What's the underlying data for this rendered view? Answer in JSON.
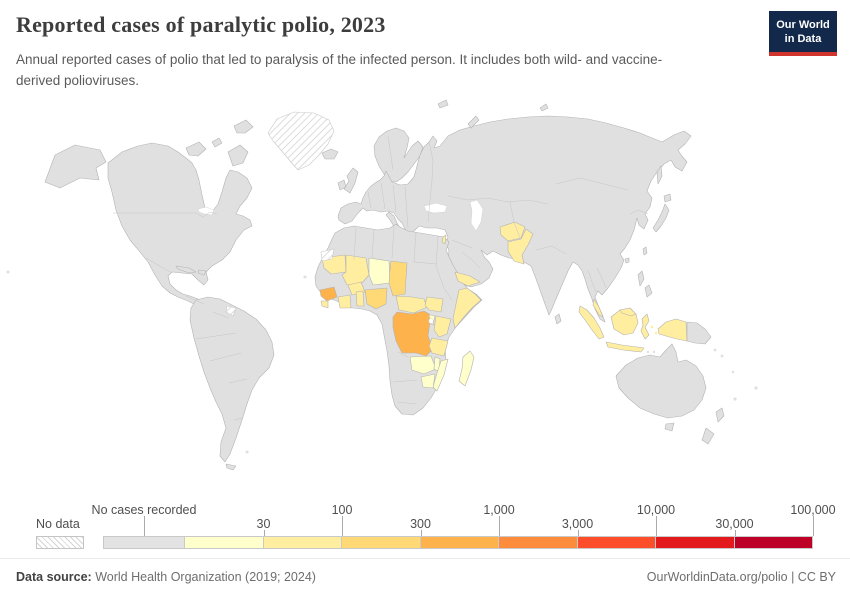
{
  "header": {
    "title": "Reported cases of paralytic polio, 2023",
    "subtitle": "Annual reported cases of polio that led to paralysis of the infected person. It includes both wild- and vaccine-derived polioviruses.",
    "logo_line1": "Our World",
    "logo_line2": "in Data",
    "logo_bg": "#12294b",
    "logo_accent": "#d0342c"
  },
  "legend": {
    "no_data_label": "No data",
    "no_cases_label": "No cases recorded",
    "tick_labels": [
      "30",
      "100",
      "300",
      "1,000",
      "3,000",
      "10,000",
      "30,000",
      "100,000"
    ],
    "bin_colors": [
      "#e3e3e3",
      "#ffffcc",
      "#ffeda0",
      "#fed976",
      "#feb24c",
      "#fd8d3c",
      "#fc4e2a",
      "#e31a1c",
      "#bd0026"
    ]
  },
  "map": {
    "land_color": "#e0e0e0",
    "border_color": "#b3b3b3",
    "ocean_color": "#ffffff",
    "country_bins": {
      "Democratic Republic of Congo": 4,
      "Guinea": 4,
      "Nigeria": 3,
      "Chad": 3,
      "Mauritania": 2,
      "Mali": 2,
      "Burkina Faso": 2,
      "Cote d'Ivoire": 2,
      "Sierra Leone": 2,
      "Benin": 2,
      "Central African Republic": 2,
      "South Sudan": 2,
      "Somalia": 2,
      "Kenya": 2,
      "Tanzania": 2,
      "Yemen": 2,
      "Israel": 2,
      "Afghanistan": 2,
      "Pakistan": 2,
      "Indonesia": 2,
      "Malaysia": 2,
      "Niger": 1,
      "Uganda": 1,
      "Zambia": 1,
      "Malawi": 1,
      "Zimbabwe": 1,
      "Mozambique": 1,
      "Madagascar": 1,
      "Greenland": "no_data",
      "French Guiana": "no_data",
      "Western Sahara": "no_data"
    }
  },
  "footer": {
    "source_label": "Data source:",
    "source_value": " World Health Organization (2019; 2024)",
    "credit": "OurWorldinData.org/polio | CC BY"
  },
  "chart_data": {
    "type": "choropleth",
    "title": "Reported cases of paralytic polio, 2023",
    "unit": "reported cases of paralytic polio",
    "scale_type": "logarithmic bins",
    "bins": [
      {
        "label": "No cases recorded",
        "color": "#e3e3e3"
      },
      {
        "range": "1–30",
        "color": "#ffffcc"
      },
      {
        "range": "30–100",
        "color": "#ffeda0"
      },
      {
        "range": "100–300",
        "color": "#fed976"
      },
      {
        "range": "300–1,000",
        "color": "#feb24c"
      },
      {
        "range": "1,000–3,000",
        "color": "#fd8d3c"
      },
      {
        "range": "3,000–10,000",
        "color": "#fc4e2a"
      },
      {
        "range": "10,000–30,000",
        "color": "#e31a1c"
      },
      {
        "range": "30,000–100,000",
        "color": "#bd0026"
      }
    ],
    "countries": {
      "Democratic Republic of Congo": "300–1,000",
      "Guinea": "300–1,000",
      "Nigeria": "100–300",
      "Chad": "100–300",
      "Mauritania": "30–100",
      "Mali": "30–100",
      "Burkina Faso": "30–100",
      "Cote d'Ivoire": "30–100",
      "Sierra Leone": "30–100",
      "Benin": "30–100",
      "Central African Republic": "30–100",
      "South Sudan": "30–100",
      "Somalia": "30–100",
      "Kenya": "30–100",
      "Tanzania": "30–100",
      "Yemen": "30–100",
      "Israel": "30–100",
      "Afghanistan": "30–100",
      "Pakistan": "30–100",
      "Indonesia": "30–100",
      "Malaysia": "30–100",
      "Niger": "1–30",
      "Uganda": "1–30",
      "Zambia": "1–30",
      "Malawi": "1–30",
      "Zimbabwe": "1–30",
      "Mozambique": "1–30",
      "Madagascar": "1–30",
      "all_other_countries": "No cases recorded",
      "no_data": [
        "Greenland",
        "French Guiana",
        "Western Sahara"
      ]
    },
    "legend_position": "bottom"
  }
}
